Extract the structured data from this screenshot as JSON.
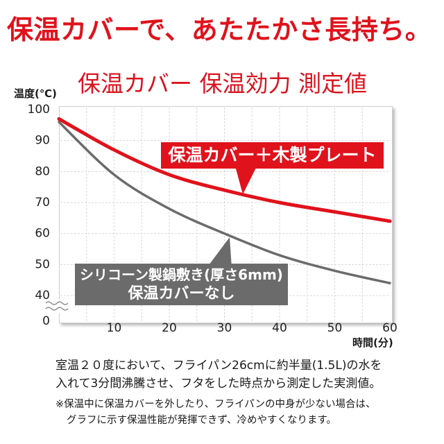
{
  "headline": "保温カバーで、あたたかさ長持ち。",
  "colors": {
    "accent_red": "#e0121b",
    "gray": "#6b6b6b"
  },
  "chart_data": {
    "type": "line",
    "title": "保温カバー 保温効力 測定値",
    "ylabel": "温度(℃)",
    "xlabel": "時間(分)",
    "xlim": [
      0,
      60
    ],
    "ylim": [
      40,
      100
    ],
    "xticks": [
      10,
      20,
      30,
      40,
      50,
      60
    ],
    "yticks": [
      100,
      90,
      80,
      70,
      60,
      50,
      40
    ],
    "y_origin_label": 0,
    "y_axis_break": true,
    "grid": true,
    "x": [
      0,
      10,
      20,
      30,
      40,
      50,
      60
    ],
    "series": [
      {
        "label_lines": [
          "保温カバー＋木製プレート"
        ],
        "color": "#e0121b",
        "values": [
          97,
          87,
          79,
          74,
          70,
          67,
          64
        ]
      },
      {
        "label_lines": [
          "シリコーン製鍋敷き(厚さ6mm)",
          "保温カバーなし"
        ],
        "color": "#6b6b6b",
        "values": [
          96,
          79,
          68,
          60,
          53,
          48,
          44
        ]
      }
    ]
  },
  "footnote": {
    "lines": [
      "室温２０度において、フライパン26cmに約半量(1.5L)の水を",
      "入れて3分間沸騰させ、フタをした時点から測定した実測値。"
    ]
  },
  "caution": {
    "lines": [
      "※保温中に保温カバーを外したり、フライパンの中身が少ない場合は、",
      "グラフに示す保温性能が発揮できず、冷めやすくなります。"
    ]
  }
}
